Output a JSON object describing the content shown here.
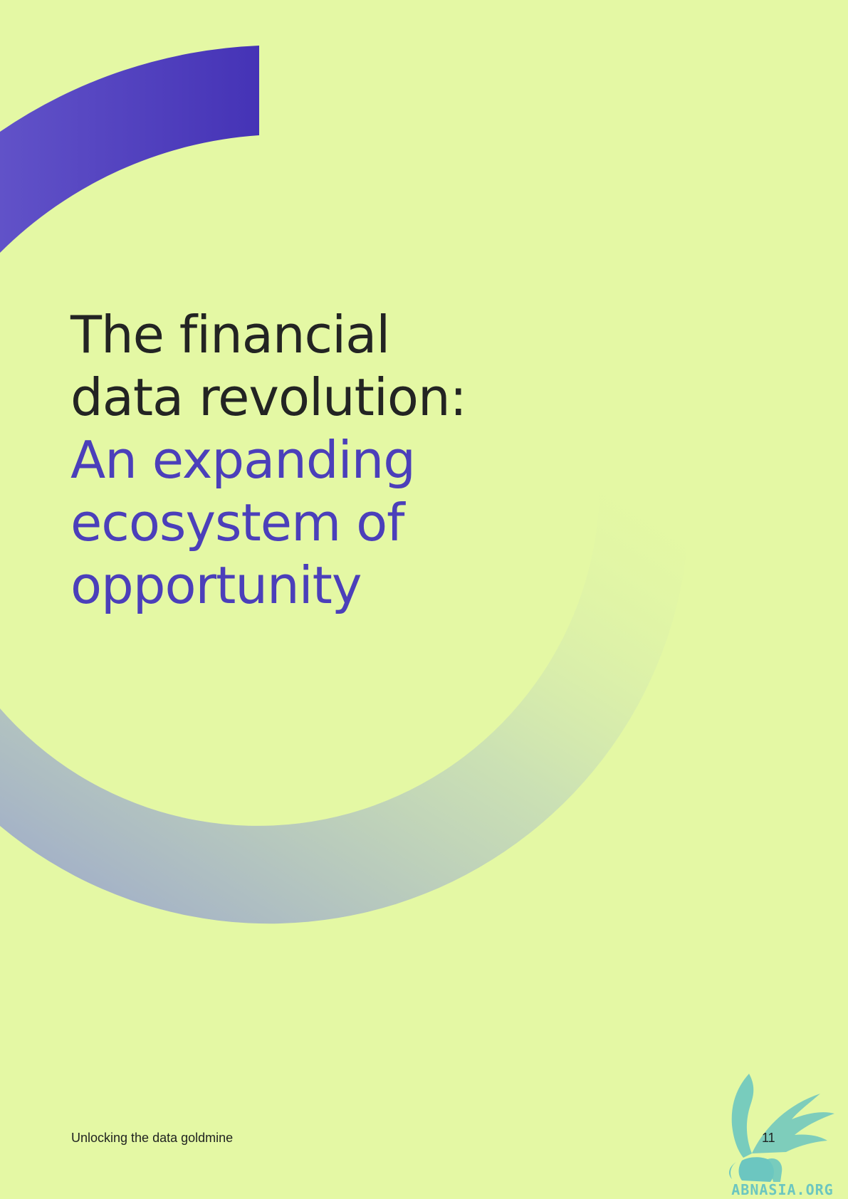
{
  "colors": {
    "background": "#e4f8a4",
    "title_dark": "#232423",
    "title_accent": "#4b3fba",
    "arc_purple": "#4533b6",
    "footer_text": "#1f2220",
    "logo_teal": "#6cc6c0"
  },
  "heading": {
    "line1": "The financial",
    "line2": "data revolution:",
    "line3": "An expanding",
    "line4": "ecosystem of",
    "line5": "opportunity"
  },
  "footer": {
    "document_title": "Unlocking the data goldmine",
    "page_number": "11"
  },
  "watermark": {
    "text": "ABNASIA.ORG",
    "icon": "winged-lion-icon"
  }
}
